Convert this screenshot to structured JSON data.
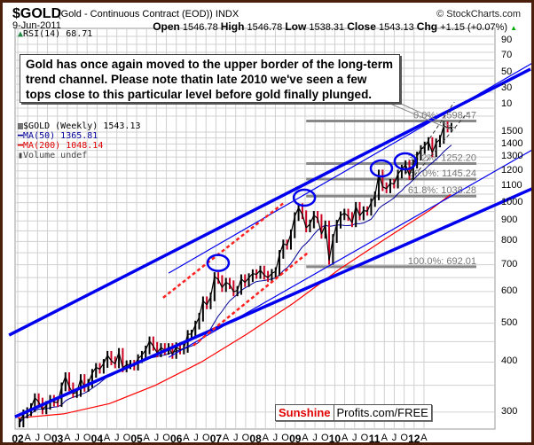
{
  "header": {
    "title": "$GOLD",
    "subtitle": "(Gold - Continuous Contract (EOD)) INDX",
    "copyright": "© StockCharts.com",
    "date": "9-Jun-2011",
    "open_label": "Open",
    "open": "1546.78",
    "high_label": "High",
    "high": "1546.78",
    "low_label": "Low",
    "low": "1538.31",
    "close_label": "Close",
    "close": "1543.13",
    "chg_label": "Chg",
    "chg": "+1.15 (+0.07%)",
    "chg_icon": "up-triangle"
  },
  "legend": {
    "rsi": "RSI(14) 68.71",
    "price": "$GOLD (Weekly) 1543.13",
    "ma50": "MA(50) 1365.81",
    "ma200": "MA(200) 1048.14",
    "volume": "Volume undef"
  },
  "annotation": "Gold has once again moved to the upper border of the long-term trend channel. Please note thatin late 2010 we've seen a few tops close to this particular level before gold finally plunged.",
  "branding": {
    "part1": "Sunshine",
    "part2": "Profits.com/FREE"
  },
  "colors": {
    "price_up": "#000000",
    "price_down": "#cc0022",
    "ma50": "#000099",
    "ma200": "#ff0000",
    "trend": "#0000ee",
    "fib": "#888888",
    "frame": "#4a1f0c"
  },
  "chart_data": {
    "type": "line",
    "scale": "log",
    "grid": true,
    "rsi_ticks": [
      "90",
      "70",
      "50",
      "30",
      "10"
    ],
    "y_ticks": [
      "1500",
      "1400",
      "1300",
      "1200",
      "1100",
      "1000",
      "900",
      "800",
      "700",
      "600",
      "500",
      "400",
      "300"
    ],
    "x_ticks": [
      "02",
      "A",
      "J",
      "O",
      "03",
      "A",
      "J",
      "O",
      "04",
      "A",
      "J",
      "O",
      "05",
      "A",
      "J",
      "O",
      "06",
      "A",
      "J",
      "O",
      "07",
      "A",
      "J",
      "O",
      "08",
      "A",
      "J",
      "O",
      "09",
      "A",
      "J",
      "O",
      "10",
      "A",
      "J",
      "O",
      "11",
      "A",
      "J",
      "O",
      "12",
      "A"
    ],
    "price": {
      "start": "2002-01",
      "frequency": "monthly",
      "close": [
        282,
        297,
        301,
        308,
        326,
        318,
        304,
        312,
        323,
        318,
        317,
        347,
        368,
        347,
        334,
        336,
        364,
        346,
        354,
        375,
        388,
        384,
        397,
        416,
        403,
        396,
        423,
        387,
        394,
        395,
        391,
        408,
        416,
        429,
        452,
        438,
        422,
        435,
        428,
        435,
        418,
        437,
        429,
        433,
        469,
        470,
        495,
        518,
        569,
        556,
        582,
        654,
        643,
        614,
        633,
        624,
        599,
        604,
        646,
        632,
        650,
        665,
        662,
        679,
        659,
        650,
        666,
        673,
        743,
        789,
        783,
        836,
        923,
        972,
        933,
        865,
        885,
        930,
        913,
        834,
        880,
        718,
        814,
        884,
        928,
        942,
        924,
        891,
        979,
        927,
        955,
        952,
        1001,
        1040,
        1179,
        1096,
        1083,
        1118,
        1113,
        1179,
        1212,
        1244,
        1169,
        1248,
        1307,
        1357,
        1385,
        1421,
        1333,
        1410,
        1439,
        1556,
        1536,
        1543
      ]
    },
    "ma200": [
      [
        2002.0,
        290
      ],
      [
        2003.0,
        297
      ],
      [
        2004.0,
        315
      ],
      [
        2005.0,
        350
      ],
      [
        2006.0,
        400
      ],
      [
        2007.0,
        470
      ],
      [
        2008.0,
        560
      ],
      [
        2009.0,
        680
      ],
      [
        2010.0,
        810
      ],
      [
        2011.0,
        960
      ],
      [
        2011.44,
        1048
      ]
    ],
    "fibonacci": {
      "from": 2008.29,
      "to": 2012.0,
      "levels": [
        {
          "label": "0.0%: 1598.47",
          "value": 1598.47
        },
        {
          "label": "38.2%: 1252.20",
          "value": 1252.2
        },
        {
          "label": "50.0%: 1145.24",
          "value": 1145.24
        },
        {
          "label": "61.8%: 1038.28",
          "value": 1038.28
        },
        {
          "label": "100.0%: 692.01",
          "value": 692.01
        }
      ]
    },
    "trendlines": [
      {
        "style": "thick",
        "color": "#0000ee",
        "from": [
          2001.81,
          467
        ],
        "to": [
          2013.18,
          2154
        ]
      },
      {
        "style": "thick",
        "color": "#0000ee",
        "from": [
          2001.94,
          292
        ],
        "to": [
          2013.26,
          1089
        ]
      },
      {
        "style": "thin",
        "color": "#0000ee",
        "from": [
          2005.29,
          667
        ],
        "to": [
          2013.26,
          2243
        ]
      },
      {
        "style": "thin",
        "color": "#0000ee",
        "from": [
          2005.29,
          411
        ],
        "to": [
          2013.26,
          1362
        ]
      },
      {
        "style": "red-dash",
        "color": "#ff2020",
        "from": [
          2005.17,
          579
        ],
        "to": [
          2007.8,
          998
        ]
      },
      {
        "style": "red-dash",
        "color": "#ff2020",
        "from": [
          2005.83,
          440
        ],
        "to": [
          2008.31,
          747
        ]
      },
      {
        "style": "black-dash",
        "color": "#333333",
        "from": [
          2010.45,
          1175
        ],
        "to": [
          2011.52,
          1783
        ]
      },
      {
        "style": "black-dash",
        "color": "#333333",
        "from": [
          2010.57,
          1140
        ],
        "to": [
          2011.81,
          1679
        ]
      }
    ],
    "highlighted_tops": [
      [
        2006.37,
        707
      ],
      [
        2008.25,
        1029
      ],
      [
        2009.93,
        1217
      ],
      [
        2010.45,
        1268
      ]
    ]
  }
}
